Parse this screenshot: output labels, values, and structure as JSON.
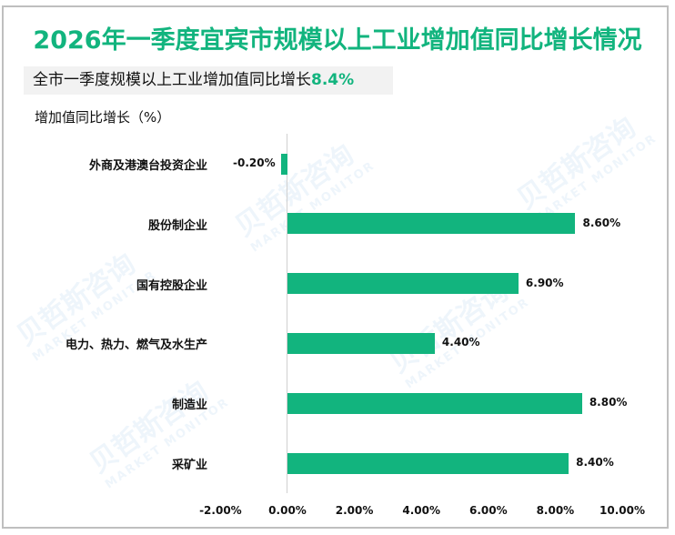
{
  "title": "2026年一季度宜宾市规模以上工业增加值同比增长情况",
  "subtitle": {
    "text": "全市一季度规模以上工业增加值同比增长",
    "highlight": "8.4%"
  },
  "colors": {
    "accent": "#12b47e",
    "bar": "#12b47e",
    "subtitle_bg": "#f2f2f2",
    "frame": "#bfbfbf"
  },
  "watermark": {
    "cn": "贝哲斯咨询",
    "en": "MARKET MONITOR"
  },
  "chart_data": {
    "type": "bar",
    "orientation": "horizontal",
    "title": "2026年一季度宜宾市规模以上工业增加值同比增长情况",
    "ylabel": "增加值同比增长（%）",
    "xlabel": "",
    "categories": [
      "外商及港澳台投资企业",
      "股份制企业",
      "国有控股企业",
      "电力、热力、燃气及水生产",
      "制造业",
      "采矿业"
    ],
    "values": [
      -0.2,
      8.6,
      6.9,
      4.4,
      8.8,
      8.4
    ],
    "value_labels": [
      "-0.20%",
      "8.60%",
      "6.90%",
      "4.40%",
      "8.80%",
      "8.40%"
    ],
    "xlim": [
      -2,
      10
    ],
    "xticks": [
      "-2.00%",
      "0.00%",
      "2.00%",
      "4.00%",
      "6.00%",
      "8.00%",
      "10.00%"
    ],
    "grid": false,
    "legend": "none"
  }
}
